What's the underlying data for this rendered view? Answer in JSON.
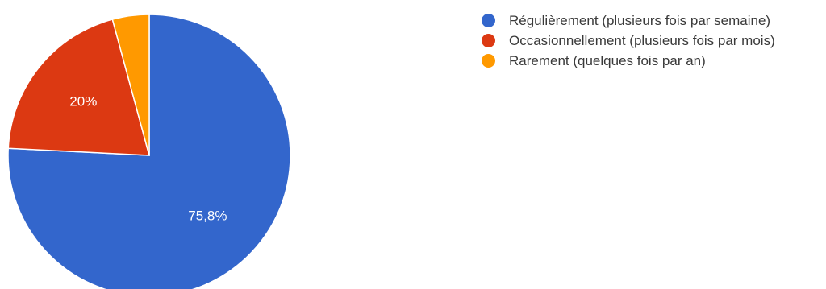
{
  "chart_data": {
    "type": "pie",
    "categories": [
      "Régulièrement (plusieurs fois par semaine)",
      "Occasionnellement (plusieurs fois par mois)",
      "Rarement (quelques fois par an)"
    ],
    "values": [
      75.8,
      20,
      4.2
    ],
    "data_labels": [
      "75,8%",
      "20%",
      ""
    ],
    "colors": [
      "#3366cc",
      "#dc3912",
      "#ff9900"
    ],
    "start": "top",
    "direction": "clockwise",
    "legend_position": "right"
  }
}
